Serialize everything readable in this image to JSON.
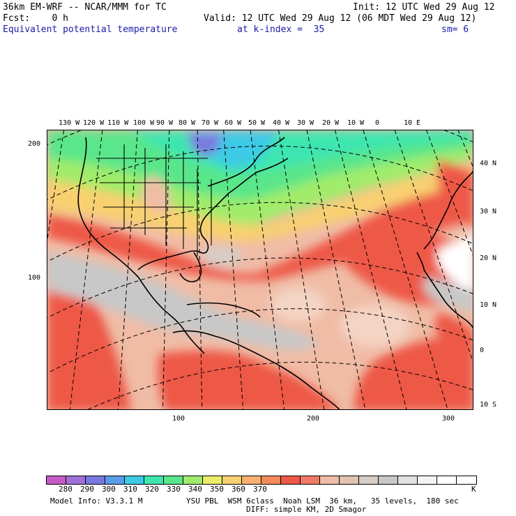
{
  "header": {
    "model_line": "36km EM-WRF -- NCAR/MMM for TC",
    "init_line": "Init: 12 UTC Wed 29 Aug 12",
    "fcst_line": "Fcst:    0 h",
    "valid_line": "Valid: 12 UTC Wed 29 Aug 12 (06 MDT Wed 29 Aug 12)",
    "field_title": "Equivalent potential temperature",
    "kindex_label": "at k-index =  35",
    "smooth_label": "sm= 6"
  },
  "map": {
    "top_lon_labels": [
      "130 W",
      "120 W",
      "110 W",
      "100 W",
      "90 W",
      "80 W",
      "70 W",
      "60 W",
      "50 W",
      "40 W",
      "30 W",
      "20 W",
      "10 W",
      "0",
      "10 E"
    ],
    "right_lat_labels": [
      "40 N",
      "30 N",
      "20 N",
      "10 N",
      "0",
      "10 S"
    ],
    "left_grid_labels": [
      "200",
      "100"
    ],
    "bottom_grid_labels": [
      "100",
      "200",
      "300"
    ],
    "colors": {
      "frame": "#000000",
      "gridline": "#000000",
      "coast": "#000000"
    }
  },
  "colorbar": {
    "swatch_colors": [
      "#c85ac8",
      "#a070d8",
      "#7a78e0",
      "#5a9ce8",
      "#3ccae6",
      "#3ee6b0",
      "#5ae68a",
      "#a0ec6a",
      "#e8ec6a",
      "#f8d070",
      "#f8b070",
      "#f48a58",
      "#ee5846",
      "#f07a66",
      "#f0bca6",
      "#e0c4b0",
      "#d6cdc6",
      "#c8c8c8",
      "#e2e2e2",
      "#f4f4f4",
      "#ffffff",
      "#ffffff"
    ],
    "tick_labels": [
      "280",
      "290",
      "300",
      "310",
      "320",
      "330",
      "340",
      "350",
      "360",
      "370"
    ],
    "unit": "K"
  },
  "footer": {
    "model_info": "Model Info: V3.3.1 M",
    "physics_line1": "YSU PBL  WSM 6class  Noah LSM  36 km,   35 levels,  180 sec",
    "physics_line2": "DIFF: simple KM, 2D Smagor"
  }
}
